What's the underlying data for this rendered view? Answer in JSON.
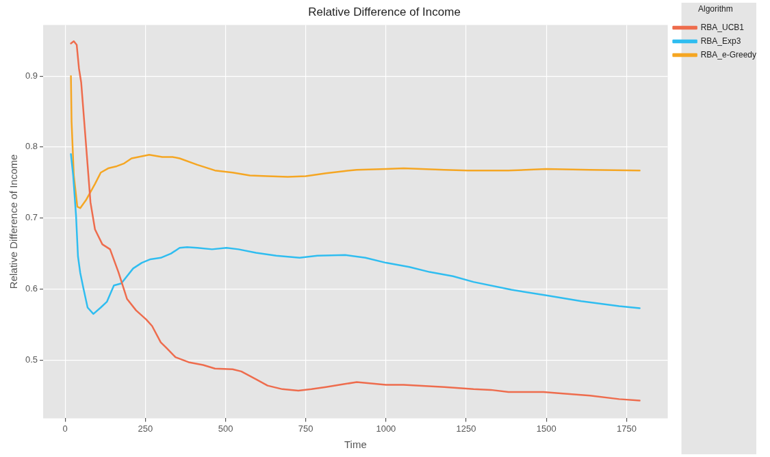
{
  "chart_data": {
    "type": "line",
    "title": "Relative Difference of Income",
    "xlabel": "Time",
    "ylabel": "Relative Difference of Income",
    "legend_title": "Algorithm",
    "xlim": [
      -68.5,
      1878.5
    ],
    "xticks": [
      0,
      250,
      500,
      750,
      1000,
      1250,
      1500,
      1750
    ],
    "ylim": [
      0.418,
      0.972
    ],
    "yticks": [
      0.5,
      0.6,
      0.7,
      0.8,
      0.9
    ],
    "grid": true,
    "legend": "right",
    "marker": "none",
    "line_style": "solid",
    "series": [
      {
        "name": "RBA_UCB1",
        "color": "#ee6c4d",
        "x": [
          18,
          27,
          36,
          43,
          50,
          66,
          79,
          93,
          116,
          140,
          166,
          193,
          221,
          253,
          271,
          298,
          316,
          344,
          385,
          430,
          467,
          522,
          549,
          595,
          631,
          677,
          727,
          768,
          813,
          868,
          909,
          1000,
          1055,
          1182,
          1273,
          1327,
          1382,
          1491,
          1545,
          1636,
          1727,
          1791
        ],
        "values": [
          0.946,
          0.949,
          0.944,
          0.911,
          0.891,
          0.798,
          0.722,
          0.684,
          0.663,
          0.656,
          0.624,
          0.586,
          0.57,
          0.557,
          0.548,
          0.525,
          0.517,
          0.504,
          0.497,
          0.493,
          0.488,
          0.487,
          0.484,
          0.473,
          0.464,
          0.459,
          0.457,
          0.459,
          0.462,
          0.466,
          0.469,
          0.465,
          0.465,
          0.462,
          0.459,
          0.458,
          0.455,
          0.455,
          0.453,
          0.45,
          0.445,
          0.443
        ]
      },
      {
        "name": "RBA_Exp3",
        "color": "#2fbdf0",
        "x": [
          18,
          25,
          34,
          40,
          47,
          57,
          70,
          88,
          111,
          130,
          152,
          175,
          212,
          239,
          266,
          298,
          330,
          357,
          380,
          412,
          458,
          503,
          540,
          595,
          658,
          731,
          786,
          873,
          936,
          1000,
          1073,
          1136,
          1209,
          1273,
          1391,
          1500,
          1609,
          1727,
          1791
        ],
        "values": [
          0.79,
          0.76,
          0.703,
          0.646,
          0.623,
          0.601,
          0.574,
          0.565,
          0.574,
          0.582,
          0.605,
          0.608,
          0.629,
          0.637,
          0.642,
          0.644,
          0.65,
          0.658,
          0.659,
          0.658,
          0.656,
          0.658,
          0.656,
          0.651,
          0.647,
          0.644,
          0.647,
          0.648,
          0.644,
          0.637,
          0.631,
          0.624,
          0.618,
          0.61,
          0.599,
          0.591,
          0.583,
          0.576,
          0.573
        ]
      },
      {
        "name": "RBA_e-Greedy",
        "color": "#f5a623",
        "x": [
          18,
          20,
          27,
          38,
          47,
          66,
          93,
          111,
          134,
          161,
          184,
          207,
          262,
          303,
          335,
          357,
          412,
          467,
          522,
          576,
          631,
          694,
          750,
          813,
          868,
          909,
          1000,
          1055,
          1182,
          1255,
          1382,
          1500,
          1636,
          1791
        ],
        "values": [
          0.9,
          0.836,
          0.76,
          0.716,
          0.714,
          0.726,
          0.748,
          0.764,
          0.77,
          0.773,
          0.777,
          0.784,
          0.789,
          0.786,
          0.786,
          0.784,
          0.775,
          0.767,
          0.764,
          0.76,
          0.759,
          0.758,
          0.759,
          0.763,
          0.766,
          0.768,
          0.769,
          0.77,
          0.768,
          0.767,
          0.767,
          0.769,
          0.768,
          0.767
        ]
      }
    ]
  }
}
